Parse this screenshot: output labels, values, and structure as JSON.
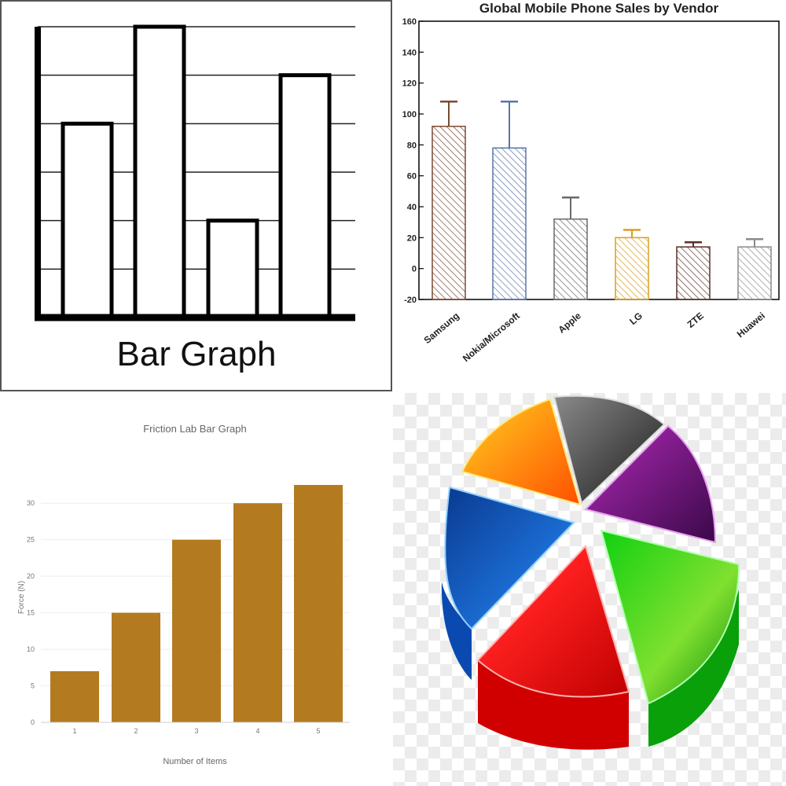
{
  "chart_data": [
    {
      "type": "bar",
      "title": "Bar Graph",
      "categories": [
        "",
        "",
        "",
        ""
      ],
      "values": [
        4,
        6,
        2,
        5
      ],
      "ylim": [
        0,
        6
      ],
      "grid": true
    },
    {
      "type": "bar",
      "title": "Global Mobile Phone Sales by Vendor",
      "categories": [
        "Samsung",
        "Nokia/Microsoft",
        "Apple",
        "LG",
        "ZTE",
        "Huawei"
      ],
      "values": [
        92,
        78,
        32,
        20,
        14,
        14
      ],
      "error_upper": [
        108,
        108,
        46,
        25,
        17,
        19
      ],
      "ylim": [
        -20,
        160
      ],
      "yticks": [
        "160",
        "140",
        "120",
        "100",
        "80",
        "60",
        "40",
        "20",
        "0",
        "-20"
      ],
      "colors": [
        "#7a4a30",
        "#5a76a8",
        "#6a6a6a",
        "#d8a020",
        "#5a3028",
        "#8a8a8a"
      ],
      "grid": false
    },
    {
      "type": "bar",
      "title": "Friction Lab Bar Graph",
      "categories": [
        "1",
        "2",
        "3",
        "4",
        "5"
      ],
      "values": [
        7,
        15,
        25,
        30,
        32.5
      ],
      "xlabel": "Number of Items",
      "ylabel": "Force (N)",
      "ylim": [
        0,
        32.5
      ],
      "yticks": [
        "30",
        "25",
        "20",
        "15",
        "10",
        "5",
        "0"
      ],
      "color": "#b37a20",
      "grid": true
    },
    {
      "type": "pie",
      "slices": [
        {
          "color": "#2a2a2a",
          "value": 1
        },
        {
          "color": "#7a1a8a",
          "value": 1
        },
        {
          "color": "#1bb51b",
          "value": 1
        },
        {
          "color": "#e81010",
          "value": 1
        },
        {
          "color": "#0a5ac0",
          "value": 1
        },
        {
          "color": "#f5a010",
          "value": 1
        }
      ]
    }
  ]
}
